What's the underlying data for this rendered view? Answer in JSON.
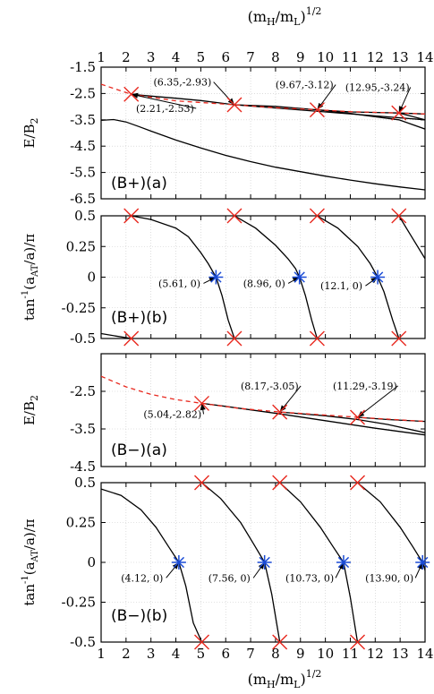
{
  "figure": {
    "x_axis_label_top": "(m",
    "x_axis_label": "(m_H/m_L)^{1/2}",
    "x_label_parts": {
      "open": "(m",
      "h": "H",
      "slash": "/m",
      "l": "L",
      "close": ")",
      "exp": "1/2"
    }
  },
  "chart_data": [
    {
      "id": "Bplus_a",
      "type": "line",
      "title": "",
      "panel_label": "(B+)(a)",
      "ylabel": "E/B_2",
      "ylabel_parts": {
        "main": "E/B",
        "sub": "2"
      },
      "xlim": [
        1,
        14
      ],
      "ylim": [
        -6.5,
        -1.5
      ],
      "xticks": [
        1,
        2,
        3,
        4,
        5,
        6,
        7,
        8,
        9,
        10,
        11,
        12,
        13,
        14
      ],
      "yticks": [
        -1.5,
        -2.5,
        -3.5,
        -4.5,
        -5.5,
        -6.5
      ],
      "ytick_labels": [
        "-1.5",
        "-2.5",
        "-3.5",
        "-4.5",
        "-5.5",
        "-6.5"
      ],
      "grid": true,
      "series": [
        {
          "style": "solid",
          "color": "#000000",
          "x": [
            2.21,
            3,
            4,
            5,
            6.35,
            8,
            10,
            12,
            14
          ],
          "y": [
            -2.53,
            -2.6,
            -2.68,
            -2.77,
            -2.93,
            -3.05,
            -3.2,
            -3.35,
            -3.5
          ]
        },
        {
          "style": "solid",
          "color": "#000000",
          "x": [
            6.35,
            8,
            9.67,
            11,
            12.95,
            14
          ],
          "y": [
            -2.93,
            -2.99,
            -3.12,
            -3.2,
            -3.24,
            -3.28
          ]
        },
        {
          "style": "solid",
          "color": "#000000",
          "x": [
            9.67,
            11,
            12.95,
            14
          ],
          "y": [
            -3.12,
            -3.26,
            -3.5,
            -3.85
          ]
        },
        {
          "style": "solid",
          "color": "#000000",
          "x": [
            12.95,
            14
          ],
          "y": [
            -3.24,
            -3.5
          ]
        },
        {
          "style": "solid",
          "color": "#000000",
          "x": [
            1,
            1.5,
            2,
            2.5,
            3,
            4,
            5,
            6,
            7,
            8,
            9,
            10,
            11,
            12,
            13,
            14
          ],
          "y": [
            -3.52,
            -3.49,
            -3.58,
            -3.75,
            -3.93,
            -4.27,
            -4.57,
            -4.85,
            -5.09,
            -5.3,
            -5.47,
            -5.64,
            -5.79,
            -5.93,
            -6.05,
            -6.16
          ]
        },
        {
          "style": "dashed",
          "color": "#e8281e",
          "x": [
            1,
            2.21,
            4,
            6.35,
            8,
            9.67,
            11,
            12.95,
            14
          ],
          "y": [
            -2.15,
            -2.53,
            -2.78,
            -2.93,
            -3.04,
            -3.12,
            -3.19,
            -3.24,
            -3.28
          ]
        }
      ],
      "markers": [
        {
          "kind": "cross",
          "color": "#e8281e",
          "x": 2.21,
          "y": -2.53
        },
        {
          "kind": "cross",
          "color": "#e8281e",
          "x": 6.35,
          "y": -2.93
        },
        {
          "kind": "cross",
          "color": "#e8281e",
          "x": 9.67,
          "y": -3.12
        },
        {
          "kind": "cross",
          "color": "#e8281e",
          "x": 12.95,
          "y": -3.24
        }
      ],
      "annotations": [
        {
          "text": "(2.21,-2.53)",
          "tx": 2.4,
          "ty": -3.2,
          "ax": 2.21,
          "ay": -2.53
        },
        {
          "text": "(6.35,-2.93)",
          "tx": 3.1,
          "ty": -2.2,
          "ax": 6.35,
          "ay": -2.93
        },
        {
          "text": "(9.67,-3.12)",
          "tx": 8.0,
          "ty": -2.3,
          "ax": 9.67,
          "ay": -3.12
        },
        {
          "text": "(12.95,-3.24)",
          "tx": 10.8,
          "ty": -2.4,
          "ax": 12.95,
          "ay": -3.24
        }
      ]
    },
    {
      "id": "Bplus_b",
      "type": "line",
      "title": "",
      "panel_label": "(B+)(b)",
      "ylabel": "tan^-1(a_AT/a)/π",
      "ylabel_parts": {
        "a": "tan",
        "b": "-1",
        "c": "(a",
        "d": "AT",
        "e": "/a)/π"
      },
      "xlim": [
        1,
        14
      ],
      "ylim": [
        -0.5,
        0.5
      ],
      "xticks": [
        1,
        2,
        3,
        4,
        5,
        6,
        7,
        8,
        9,
        10,
        11,
        12,
        13,
        14
      ],
      "yticks": [
        0.5,
        0.25,
        0,
        -0.25,
        -0.5
      ],
      "ytick_labels": [
        "0.5",
        "0.25",
        "0",
        "-0.25",
        "-0.5"
      ],
      "grid": true,
      "series": [
        {
          "style": "solid",
          "color": "#000000",
          "x": [
            1,
            1.6,
            2.21
          ],
          "y": [
            -0.46,
            -0.48,
            -0.5
          ]
        },
        {
          "style": "solid",
          "color": "#000000",
          "x": [
            2.21,
            3,
            4,
            4.5,
            5,
            5.3,
            5.61,
            5.85,
            6.1,
            6.35
          ],
          "y": [
            0.5,
            0.47,
            0.4,
            0.33,
            0.2,
            0.11,
            0.0,
            -0.15,
            -0.35,
            -0.5
          ]
        },
        {
          "style": "solid",
          "color": "#000000",
          "x": [
            6.35,
            7.2,
            8.0,
            8.5,
            8.8,
            8.96,
            9.2,
            9.45,
            9.67
          ],
          "y": [
            0.5,
            0.4,
            0.26,
            0.15,
            0.07,
            0.0,
            -0.15,
            -0.35,
            -0.5
          ]
        },
        {
          "style": "solid",
          "color": "#000000",
          "x": [
            9.67,
            10.5,
            11.3,
            11.8,
            12.1,
            12.35,
            12.7,
            12.95
          ],
          "y": [
            0.5,
            0.4,
            0.25,
            0.11,
            0.0,
            -0.12,
            -0.35,
            -0.5
          ]
        },
        {
          "style": "solid",
          "color": "#000000",
          "x": [
            12.95,
            13.4,
            14
          ],
          "y": [
            0.5,
            0.35,
            0.15
          ]
        }
      ],
      "markers": [
        {
          "kind": "cross",
          "color": "#e8281e",
          "x": 2.21,
          "y": 0.5
        },
        {
          "kind": "cross",
          "color": "#e8281e",
          "x": 6.35,
          "y": 0.5
        },
        {
          "kind": "cross",
          "color": "#e8281e",
          "x": 9.67,
          "y": 0.5
        },
        {
          "kind": "cross",
          "color": "#e8281e",
          "x": 12.95,
          "y": 0.5
        },
        {
          "kind": "cross",
          "color": "#e8281e",
          "x": 2.21,
          "y": -0.5
        },
        {
          "kind": "cross",
          "color": "#e8281e",
          "x": 6.35,
          "y": -0.5
        },
        {
          "kind": "cross",
          "color": "#e8281e",
          "x": 9.67,
          "y": -0.5
        },
        {
          "kind": "cross",
          "color": "#e8281e",
          "x": 12.95,
          "y": -0.5
        },
        {
          "kind": "star",
          "color": "#1a4bd6",
          "x": 5.61,
          "y": 0
        },
        {
          "kind": "star",
          "color": "#1a4bd6",
          "x": 8.96,
          "y": 0
        },
        {
          "kind": "star",
          "color": "#1a4bd6",
          "x": 12.1,
          "y": 0
        }
      ],
      "annotations": [
        {
          "text": "(5.61, 0)",
          "tx": 3.3,
          "ty": -0.08,
          "ax": 5.61,
          "ay": 0
        },
        {
          "text": "(8.96, 0)",
          "tx": 6.7,
          "ty": -0.08,
          "ax": 8.96,
          "ay": 0
        },
        {
          "text": "(12.1, 0)",
          "tx": 9.8,
          "ty": -0.1,
          "ax": 12.1,
          "ay": 0
        }
      ]
    },
    {
      "id": "Bminus_a",
      "type": "line",
      "title": "",
      "panel_label": "(B−)(a)",
      "ylabel": "E/B_2",
      "ylabel_parts": {
        "main": "E/B",
        "sub": "2"
      },
      "xlim": [
        1,
        14
      ],
      "ylim": [
        -4.5,
        -1.5
      ],
      "xticks": [
        1,
        2,
        3,
        4,
        5,
        6,
        7,
        8,
        9,
        10,
        11,
        12,
        13,
        14
      ],
      "yticks": [
        -1.5,
        -2.5,
        -3.5,
        -4.5
      ],
      "ytick_labels": [
        "",
        "-2.5",
        "-3.5",
        "-4.5"
      ],
      "grid": true,
      "series": [
        {
          "style": "solid",
          "color": "#000000",
          "x": [
            5.04,
            6,
            8.17,
            10,
            12,
            14
          ],
          "y": [
            -2.82,
            -2.9,
            -3.1,
            -3.28,
            -3.48,
            -3.66
          ]
        },
        {
          "style": "solid",
          "color": "#000000",
          "x": [
            8.17,
            10,
            11.29,
            12.5,
            14
          ],
          "y": [
            -3.05,
            -3.15,
            -3.25,
            -3.38,
            -3.6
          ]
        },
        {
          "style": "solid",
          "color": "#000000",
          "x": [
            11.29,
            12.5,
            14
          ],
          "y": [
            -3.19,
            -3.25,
            -3.3
          ]
        },
        {
          "style": "dashed",
          "color": "#e8281e",
          "x": [
            1,
            2,
            3,
            4,
            5.04,
            6.5,
            8.17,
            10,
            11.29,
            13,
            14
          ],
          "y": [
            -2.1,
            -2.38,
            -2.58,
            -2.72,
            -2.82,
            -2.95,
            -3.05,
            -3.13,
            -3.19,
            -3.26,
            -3.3
          ]
        }
      ],
      "markers": [
        {
          "kind": "cross",
          "color": "#e8281e",
          "x": 5.04,
          "y": -2.82
        },
        {
          "kind": "cross",
          "color": "#e8281e",
          "x": 8.17,
          "y": -3.05
        },
        {
          "kind": "cross",
          "color": "#e8281e",
          "x": 11.29,
          "y": -3.19
        }
      ],
      "annotations": [
        {
          "text": "(5.04,-2.82)",
          "tx": 2.7,
          "ty": -3.2,
          "ax": 5.04,
          "ay": -2.82
        },
        {
          "text": "(8.17,-3.05)",
          "tx": 6.6,
          "ty": -2.45,
          "ax": 8.17,
          "ay": -3.05
        },
        {
          "text": "(11.29,-3.19)",
          "tx": 10.3,
          "ty": -2.45,
          "ax": 11.29,
          "ay": -3.19
        }
      ]
    },
    {
      "id": "Bminus_b",
      "type": "line",
      "title": "",
      "panel_label": "(B−)(b)",
      "ylabel": "tan^-1(a_AT/a)/π",
      "ylabel_parts": {
        "a": "tan",
        "b": "-1",
        "c": "(a",
        "d": "AT",
        "e": "/a)/π"
      },
      "xlim": [
        1,
        14
      ],
      "ylim": [
        -0.5,
        0.5
      ],
      "xticks": [
        1,
        2,
        3,
        4,
        5,
        6,
        7,
        8,
        9,
        10,
        11,
        12,
        13,
        14
      ],
      "yticks": [
        0.5,
        0.25,
        0,
        -0.25,
        -0.5
      ],
      "ytick_labels": [
        "0.5",
        "0.25",
        "0",
        "-0.25",
        "-0.5"
      ],
      "grid": true,
      "series": [
        {
          "style": "solid",
          "color": "#000000",
          "x": [
            1,
            1.8,
            2.6,
            3.2,
            3.7,
            4.12,
            4.4,
            4.7,
            5.04
          ],
          "y": [
            0.46,
            0.42,
            0.33,
            0.22,
            0.1,
            0.0,
            -0.15,
            -0.38,
            -0.5
          ]
        },
        {
          "style": "solid",
          "color": "#000000",
          "x": [
            5.04,
            5.8,
            6.6,
            7.1,
            7.56,
            7.85,
            8.17
          ],
          "y": [
            0.5,
            0.4,
            0.25,
            0.12,
            0.0,
            -0.2,
            -0.5
          ]
        },
        {
          "style": "solid",
          "color": "#000000",
          "x": [
            8.17,
            9.0,
            9.8,
            10.3,
            10.73,
            11.0,
            11.29
          ],
          "y": [
            0.5,
            0.38,
            0.22,
            0.1,
            0.0,
            -0.22,
            -0.5
          ]
        },
        {
          "style": "solid",
          "color": "#000000",
          "x": [
            11.29,
            12.2,
            13.0,
            13.5,
            13.9,
            14
          ],
          "y": [
            0.5,
            0.38,
            0.22,
            0.1,
            0.0,
            -0.05
          ]
        }
      ],
      "markers": [
        {
          "kind": "cross",
          "color": "#e8281e",
          "x": 5.04,
          "y": 0.5
        },
        {
          "kind": "cross",
          "color": "#e8281e",
          "x": 8.17,
          "y": 0.5
        },
        {
          "kind": "cross",
          "color": "#e8281e",
          "x": 11.29,
          "y": 0.5
        },
        {
          "kind": "cross",
          "color": "#e8281e",
          "x": 5.04,
          "y": -0.5
        },
        {
          "kind": "cross",
          "color": "#e8281e",
          "x": 8.17,
          "y": -0.5
        },
        {
          "kind": "cross",
          "color": "#e8281e",
          "x": 11.29,
          "y": -0.5
        },
        {
          "kind": "star",
          "color": "#1a4bd6",
          "x": 4.12,
          "y": 0
        },
        {
          "kind": "star",
          "color": "#1a4bd6",
          "x": 7.56,
          "y": 0
        },
        {
          "kind": "star",
          "color": "#1a4bd6",
          "x": 10.73,
          "y": 0
        },
        {
          "kind": "star",
          "color": "#1a4bd6",
          "x": 13.9,
          "y": 0
        }
      ],
      "annotations": [
        {
          "text": "(4.12, 0)",
          "tx": 1.8,
          "ty": -0.12,
          "ax": 4.12,
          "ay": 0
        },
        {
          "text": "(7.56, 0)",
          "tx": 5.3,
          "ty": -0.12,
          "ax": 7.56,
          "ay": 0
        },
        {
          "text": "(10.73, 0)",
          "tx": 8.4,
          "ty": -0.12,
          "ax": 10.73,
          "ay": 0
        },
        {
          "text": "(13.90, 0)",
          "tx": 11.6,
          "ty": -0.12,
          "ax": 13.9,
          "ay": 0
        }
      ]
    }
  ]
}
